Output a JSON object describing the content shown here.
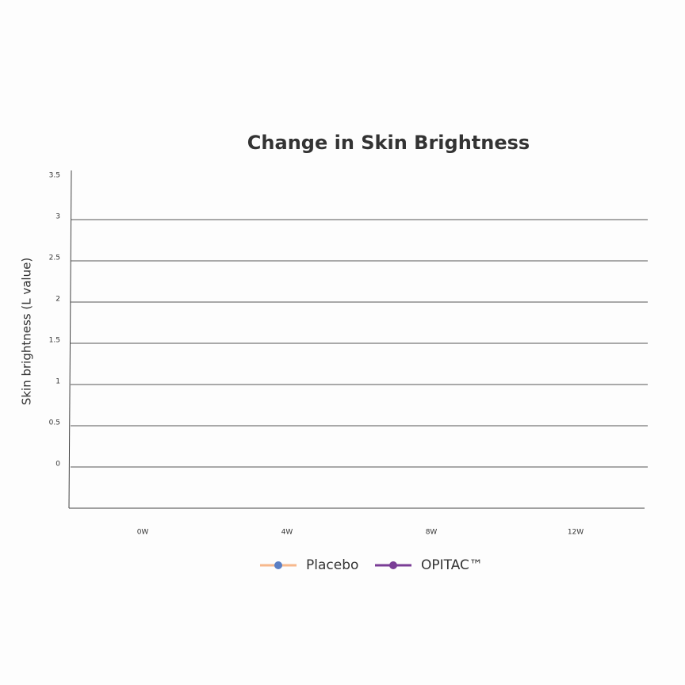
{
  "chart_data": {
    "type": "line",
    "title": "Change in Skin Brightness",
    "y_label": "Skin brightness (L value)",
    "categories": [
      "0W",
      "4W",
      "8W",
      "12W"
    ],
    "series": [
      {
        "name": "Placebo",
        "color": "#f7b88c",
        "marker_color": "#5b7fc4",
        "values": [
          null,
          null,
          null,
          null
        ]
      },
      {
        "name": "OPITAC™",
        "color": "#7a3d96",
        "marker_color": "#7a3d96",
        "values": [
          null,
          null,
          null,
          null
        ]
      }
    ],
    "ylim": [
      -0.5,
      3.5
    ],
    "yticks": [
      0,
      0.5,
      1,
      1.5,
      2,
      2.5,
      3,
      3.5
    ],
    "grid": true
  }
}
